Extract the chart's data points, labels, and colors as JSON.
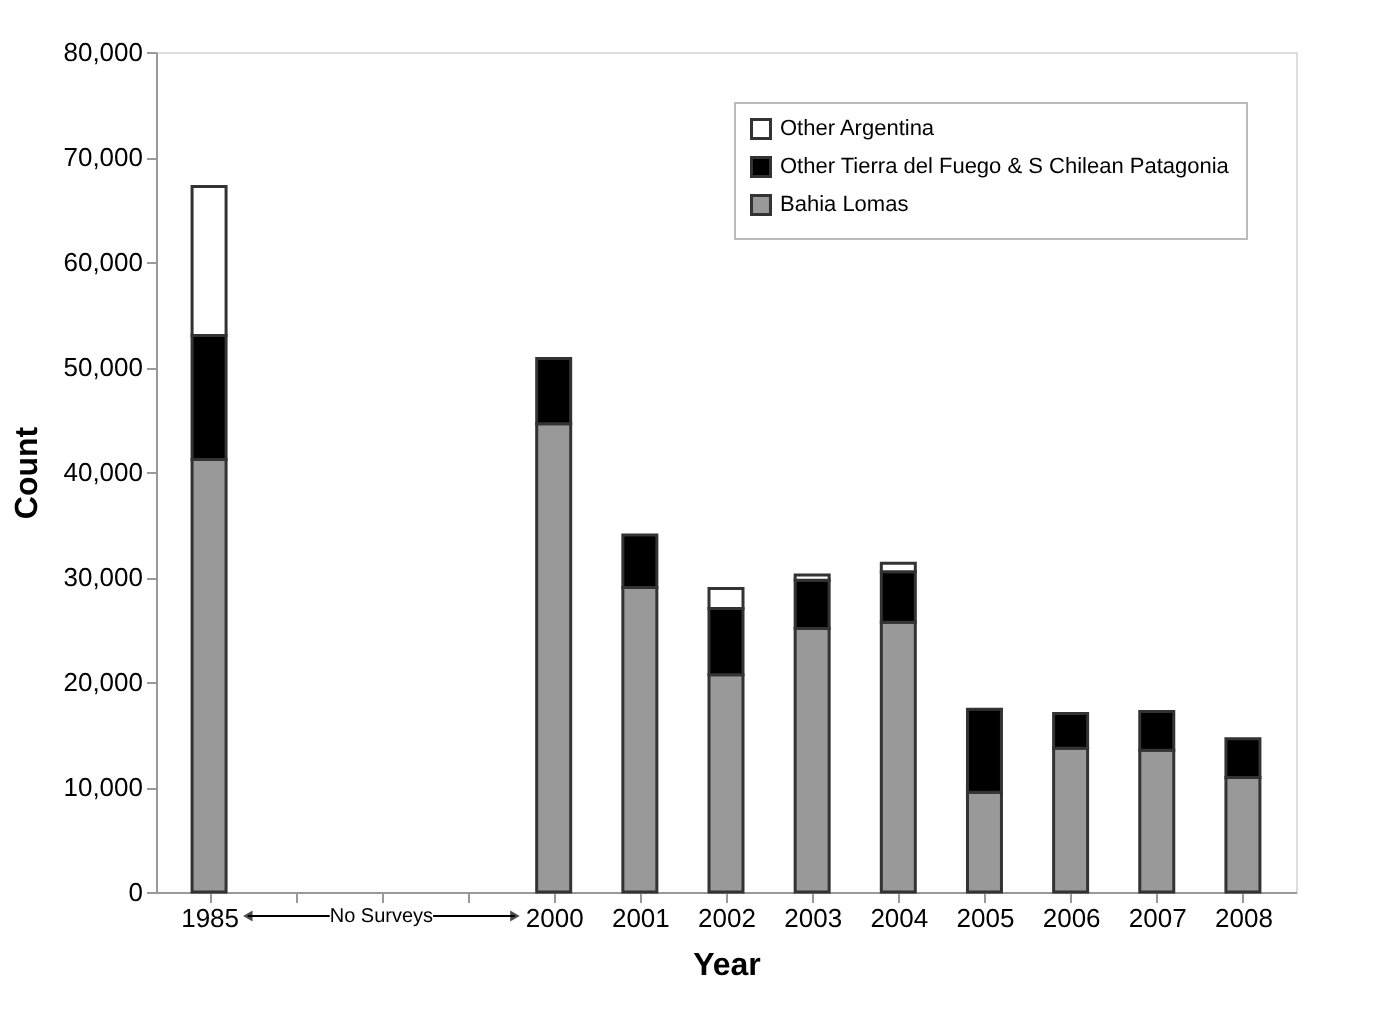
{
  "chart_data": {
    "type": "bar",
    "stacked": true,
    "categories": [
      "1985",
      null,
      null,
      null,
      "2000",
      "2001",
      "2002",
      "2003",
      "2004",
      "2005",
      "2006",
      "2007",
      "2008"
    ],
    "series": [
      {
        "name": "Bahia Lomas",
        "color": "#999999",
        "values": [
          41200,
          null,
          null,
          null,
          44600,
          29000,
          20700,
          25100,
          25700,
          9500,
          13700,
          13500,
          10900
        ]
      },
      {
        "name": "Other Tierra del Fuego & S Chilean Patagonia",
        "color": "#000000",
        "values": [
          11800,
          null,
          null,
          null,
          6200,
          5000,
          6300,
          4600,
          4800,
          7900,
          3300,
          3700,
          3700
        ]
      },
      {
        "name": "Other Argentina",
        "color": "#ffffff",
        "values": [
          14200,
          null,
          null,
          null,
          null,
          null,
          1900,
          500,
          800,
          null,
          null,
          null,
          null
        ]
      }
    ],
    "xlabel": "Year",
    "ylabel": "Count",
    "ylim": [
      0,
      80000
    ],
    "yticks": [
      {
        "value": 0,
        "label": "0"
      },
      {
        "value": 10000,
        "label": "10,000"
      },
      {
        "value": 20000,
        "label": "20,000"
      },
      {
        "value": 30000,
        "label": "30,000"
      },
      {
        "value": 40000,
        "label": "40,000"
      },
      {
        "value": 50000,
        "label": "50,000"
      },
      {
        "value": 60000,
        "label": "60,000"
      },
      {
        "value": 70000,
        "label": "70,000"
      },
      {
        "value": 80000,
        "label": "80,000"
      }
    ],
    "annotations": [
      "No Surveys"
    ],
    "legend": "top right",
    "grid": false
  }
}
